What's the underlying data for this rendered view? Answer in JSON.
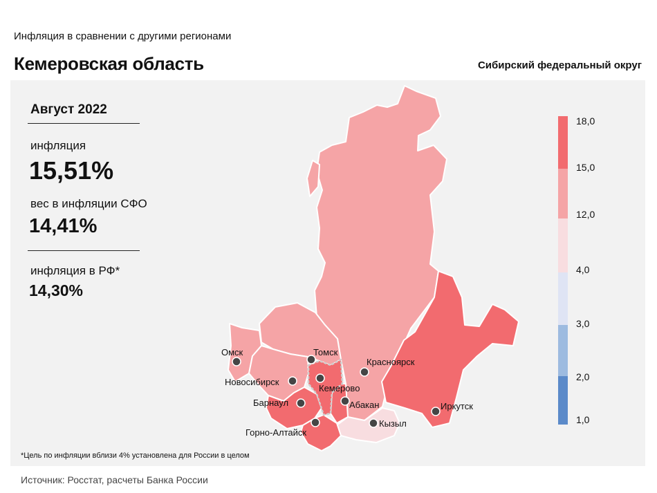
{
  "header": {
    "subtitle": "Инфляция  в сравнении  с другими  регионами",
    "title": "Кемеровская область",
    "district": "Сибирский федеральный округ"
  },
  "stats": {
    "period": "Август 2022",
    "inflation_label": "инфляция",
    "inflation_value": "15,51%",
    "weight_label": "вес в инфляции  СФО",
    "weight_value": "14,41%",
    "rf_label": "инфляция  в РФ*",
    "rf_value": "14,30%"
  },
  "legend": {
    "ticks": [
      "18,0",
      "15,0",
      "12,0",
      "4,0",
      "3,0",
      "2,0",
      "1,0"
    ],
    "colors": [
      "#f26b6f",
      "#f5a4a6",
      "#f8dde0",
      "#dfe4f4",
      "#9dbbe0",
      "#5b8ac9"
    ]
  },
  "colors": {
    "high": "#f26b6f",
    "medium": "#f5a4a6",
    "low": "#f8dde0",
    "panel": "#f2f2f2",
    "border": "#ffffff"
  },
  "cities": [
    {
      "name": "Омск"
    },
    {
      "name": "Томск"
    },
    {
      "name": "Новосибирск"
    },
    {
      "name": "Красноярск"
    },
    {
      "name": "Кемерово"
    },
    {
      "name": "Барнаул"
    },
    {
      "name": "Абакан"
    },
    {
      "name": "Иркутск"
    },
    {
      "name": "Кызыл"
    },
    {
      "name": "Горно-Алтайск"
    }
  ],
  "footnote": "*Цель по инфляции вблизи 4% установлена для России в целом",
  "source": "Источник: Росстат, расчеты Банка России"
}
